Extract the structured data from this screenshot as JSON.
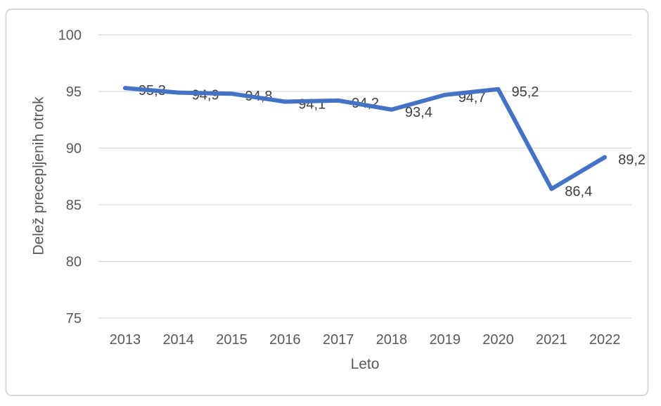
{
  "chart_data": {
    "type": "line",
    "title": "",
    "xlabel": "Leto",
    "ylabel": "Delež precepljenih otrok",
    "categories": [
      "2013",
      "2014",
      "2015",
      "2016",
      "2017",
      "2018",
      "2019",
      "2020",
      "2021",
      "2022"
    ],
    "values": [
      95.3,
      94.9,
      94.8,
      94.1,
      94.2,
      93.4,
      94.7,
      95.2,
      86.4,
      89.2
    ],
    "value_labels": [
      "95,3",
      "94,9",
      "94,8",
      "94,1",
      "94,2",
      "93,4",
      "94,7",
      "95,2",
      "86,4",
      "89,2"
    ],
    "ylim": [
      75,
      100
    ],
    "yticks": [
      75,
      80,
      85,
      90,
      95,
      100
    ],
    "grid": "horizontal",
    "legend": "none",
    "line_color": "#4472C4",
    "label_color": "#404040",
    "axis_color": "#595959",
    "grid_color": "#D9D9D9",
    "border_color": "#D9D9D9",
    "background": "#FFFFFF"
  }
}
